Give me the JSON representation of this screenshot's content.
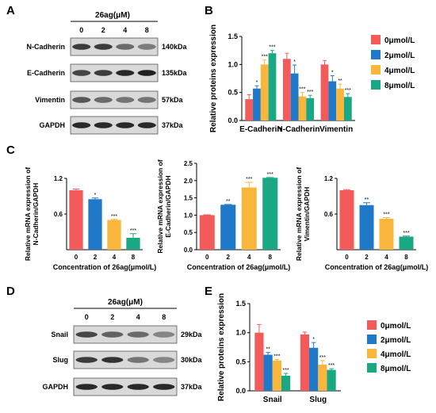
{
  "colors": {
    "s0": "#f35b5b",
    "s1": "#1f78c8",
    "s2": "#f8b73c",
    "s3": "#1aa783",
    "band": "#202020",
    "blot_bg": "#d9d9d9"
  },
  "panels": {
    "A": {
      "letter": "A",
      "header": "26ag(μM)",
      "lanes": [
        "0",
        "2",
        "4",
        "8"
      ],
      "rows": [
        {
          "label": "N-Cadherin",
          "kda": "140kDa",
          "intensity": [
            0.85,
            0.85,
            0.6,
            0.5
          ]
        },
        {
          "label": "E-Cadherin",
          "kda": "135kDa",
          "intensity": [
            0.8,
            0.85,
            0.95,
            1.0
          ]
        },
        {
          "label": "Vimentin",
          "kda": "57kDa",
          "intensity": [
            0.7,
            0.6,
            0.55,
            0.55
          ]
        },
        {
          "label": "GAPDH",
          "kda": "37kDa",
          "intensity": [
            0.95,
            0.95,
            0.95,
            0.95
          ]
        }
      ]
    },
    "D": {
      "letter": "D",
      "header": "26ag(μM)",
      "lanes": [
        "0",
        "2",
        "4",
        "8"
      ],
      "rows": [
        {
          "label": "Snail",
          "kda": "29kDa",
          "intensity": [
            0.8,
            0.65,
            0.6,
            0.45
          ]
        },
        {
          "label": "Slug",
          "kda": "30kDa",
          "intensity": [
            0.85,
            0.9,
            0.55,
            0.45
          ]
        },
        {
          "label": "GAPDH",
          "kda": "37kDa",
          "intensity": [
            0.95,
            0.95,
            0.95,
            0.95
          ]
        }
      ]
    },
    "B_letter": "B",
    "C_letter": "C",
    "E_letter": "E"
  },
  "chart_data": [
    {
      "id": "B",
      "type": "bar",
      "ylabel": "Relative proteins expression",
      "categories": [
        "E-Cadherin",
        "N-Cadherin",
        "Vimentin"
      ],
      "ylim": [
        0,
        1.5
      ],
      "yticks": [
        "0.0",
        "0.5",
        "1.0",
        "1.5"
      ],
      "legend": [
        "0μmol/L",
        "2μmol/L",
        "4μmol/L",
        "8μmol/L"
      ],
      "series": [
        {
          "name": "0μmol/L",
          "values": [
            0.38,
            1.1,
            1.0
          ],
          "err": [
            0.08,
            0.1,
            0.07
          ],
          "sig": [
            "",
            "",
            ""
          ]
        },
        {
          "name": "2μmol/L",
          "values": [
            0.57,
            0.84,
            0.7
          ],
          "err": [
            0.05,
            0.15,
            0.1
          ],
          "sig": [
            "*",
            "*",
            "*"
          ]
        },
        {
          "name": "4μmol/L",
          "values": [
            1.0,
            0.43,
            0.57
          ],
          "err": [
            0.08,
            0.07,
            0.08
          ],
          "sig": [
            "***",
            "***",
            "**"
          ]
        },
        {
          "name": "8μmol/L",
          "values": [
            1.2,
            0.4,
            0.42
          ],
          "err": [
            0.05,
            0.05,
            0.06
          ],
          "sig": [
            "***",
            "***",
            "***"
          ]
        }
      ]
    },
    {
      "id": "C1",
      "type": "bar",
      "ylabel": "Relative mRNA expression of N-Cadherin/GAPDH",
      "ylabel_lines": [
        "Relative mRNA expression of",
        "N-Cadherin/GAPDH"
      ],
      "xlabel": "Concentration of 26ag(μmol/L)",
      "categories": [
        "0",
        "2",
        "4",
        "8"
      ],
      "ylim": [
        0,
        1.2
      ],
      "yticks": [
        "0.6",
        "1.2"
      ],
      "values": [
        1.0,
        0.85,
        0.5,
        0.2
      ],
      "err": [
        0.02,
        0.02,
        0.01,
        0.07
      ],
      "sig": [
        "",
        "*",
        "***",
        "***"
      ]
    },
    {
      "id": "C2",
      "type": "bar",
      "ylabel": "Relative mRNA expression of E-Cadherin/GAPDH",
      "ylabel_lines": [
        "Relative mRNA expression of",
        "E-Cadherin/GAPDH"
      ],
      "xlabel": "Concentration of 26ag(μmol/L)",
      "categories": [
        "0",
        "2",
        "4",
        "8"
      ],
      "ylim": [
        0,
        2.5
      ],
      "yticks": [
        "0.0",
        "0.5",
        "1.0",
        "1.5",
        "2.0",
        "2.5"
      ],
      "values": [
        1.0,
        1.3,
        1.8,
        2.08
      ],
      "err": [
        0.01,
        0.01,
        0.15,
        0.01
      ],
      "sig": [
        "",
        "**",
        "***",
        "***"
      ]
    },
    {
      "id": "C3",
      "type": "bar",
      "ylabel": "Relative mRNA expression of Vimentin/GAPDH",
      "ylabel_lines": [
        "Relative mRNA expression of",
        "Vimentin/GAPDH"
      ],
      "xlabel": "Concentration of 26ag(μmol/L)",
      "categories": [
        "0",
        "2",
        "4",
        "8"
      ],
      "ylim": [
        0,
        1.2
      ],
      "yticks": [
        "0.6",
        "1.2"
      ],
      "values": [
        1.0,
        0.75,
        0.52,
        0.22
      ],
      "err": [
        0.01,
        0.04,
        0.02,
        0.01
      ],
      "sig": [
        "",
        "**",
        "***",
        "***"
      ]
    },
    {
      "id": "E",
      "type": "bar",
      "ylabel": "Relative proteins expression",
      "categories": [
        "Snail",
        "Slug"
      ],
      "ylim": [
        0,
        1.5
      ],
      "yticks": [
        "0.0",
        "0.5",
        "1.0",
        "1.5"
      ],
      "legend": [
        "0μmol/L",
        "2μmol/L",
        "4μmol/L",
        "8μmol/L"
      ],
      "series": [
        {
          "name": "0μmol/L",
          "values": [
            1.0,
            0.97
          ],
          "err": [
            0.14,
            0.04
          ],
          "sig": [
            "",
            ""
          ]
        },
        {
          "name": "2μmol/L",
          "values": [
            0.62,
            0.74
          ],
          "err": [
            0.04,
            0.09
          ],
          "sig": [
            "**",
            "*"
          ]
        },
        {
          "name": "4μmol/L",
          "values": [
            0.52,
            0.45
          ],
          "err": [
            0.02,
            0.07
          ],
          "sig": [
            "***",
            "***"
          ]
        },
        {
          "name": "8μmol/L",
          "values": [
            0.26,
            0.36
          ],
          "err": [
            0.04,
            0.02
          ],
          "sig": [
            "***",
            "***"
          ]
        }
      ]
    }
  ]
}
